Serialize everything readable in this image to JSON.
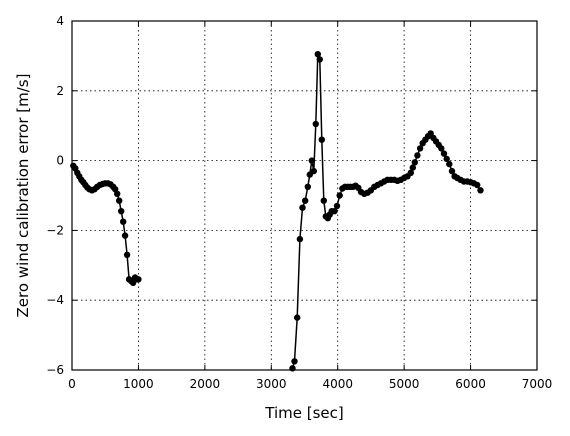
{
  "chart_data": {
    "type": "line",
    "title": "",
    "xlabel": "Time [sec]",
    "ylabel": "Zero wind calibration error [m/s]",
    "xlim": [
      0,
      7000
    ],
    "ylim": [
      -6,
      4
    ],
    "xticks": [
      0,
      1000,
      2000,
      3000,
      4000,
      5000,
      6000,
      7000
    ],
    "yticks": [
      -6,
      -4,
      -2,
      0,
      2,
      4
    ],
    "xtick_labels": [
      "0",
      "1000",
      "2000",
      "3000",
      "4000",
      "5000",
      "6000",
      "7000"
    ],
    "ytick_labels": [
      "−6",
      "−4",
      "−2",
      "0",
      "2",
      "4"
    ],
    "grid": true,
    "line_color": "#000000",
    "marker": "circle",
    "segments": [
      {
        "x": [
          20,
          50,
          80,
          110,
          140,
          170,
          200,
          230,
          260,
          300,
          340,
          380,
          420,
          460,
          500,
          540,
          580,
          620,
          650,
          680,
          710,
          740,
          770,
          800,
          830,
          860,
          890,
          920,
          950,
          980,
          1000
        ],
        "y": [
          -0.15,
          -0.22,
          -0.35,
          -0.45,
          -0.55,
          -0.62,
          -0.7,
          -0.77,
          -0.82,
          -0.85,
          -0.82,
          -0.75,
          -0.7,
          -0.67,
          -0.65,
          -0.65,
          -0.68,
          -0.75,
          -0.82,
          -0.95,
          -1.15,
          -1.45,
          -1.75,
          -2.15,
          -2.7,
          -3.4,
          -3.45,
          -3.5,
          -3.35,
          -3.4,
          -3.4
        ]
      },
      {
        "x": [
          3320,
          3350,
          3390,
          3430,
          3470,
          3510,
          3550,
          3580,
          3610,
          3640,
          3670,
          3700,
          3730,
          3760,
          3790,
          3820,
          3850,
          3880,
          3910,
          3950,
          3990,
          4030,
          4070,
          4110,
          4150,
          4190,
          4230,
          4270,
          4310,
          4350,
          4400,
          4450,
          4500,
          4550,
          4600,
          4650,
          4700,
          4750,
          4800,
          4850,
          4900,
          4950,
          5000,
          5050,
          5100,
          5130,
          5160,
          5200,
          5240,
          5280,
          5320,
          5360,
          5400,
          5440,
          5480,
          5520,
          5560,
          5600,
          5640,
          5680,
          5720,
          5760,
          5800,
          5850,
          5900,
          5950,
          6000,
          6050,
          6100,
          6150
        ],
        "y": [
          -5.95,
          -5.75,
          -4.5,
          -2.25,
          -1.35,
          -1.15,
          -0.75,
          -0.4,
          0.0,
          -0.3,
          1.05,
          3.05,
          2.9,
          0.6,
          -1.15,
          -1.6,
          -1.65,
          -1.55,
          -1.45,
          -1.45,
          -1.3,
          -1.0,
          -0.8,
          -0.75,
          -0.75,
          -0.75,
          -0.75,
          -0.72,
          -0.78,
          -0.9,
          -0.95,
          -0.92,
          -0.85,
          -0.75,
          -0.7,
          -0.65,
          -0.6,
          -0.55,
          -0.55,
          -0.55,
          -0.58,
          -0.55,
          -0.5,
          -0.45,
          -0.35,
          -0.2,
          -0.05,
          0.15,
          0.35,
          0.5,
          0.6,
          0.7,
          0.78,
          0.65,
          0.55,
          0.45,
          0.35,
          0.2,
          0.05,
          -0.1,
          -0.3,
          -0.45,
          -0.5,
          -0.55,
          -0.6,
          -0.6,
          -0.62,
          -0.65,
          -0.7,
          -0.85
        ]
      }
    ]
  }
}
